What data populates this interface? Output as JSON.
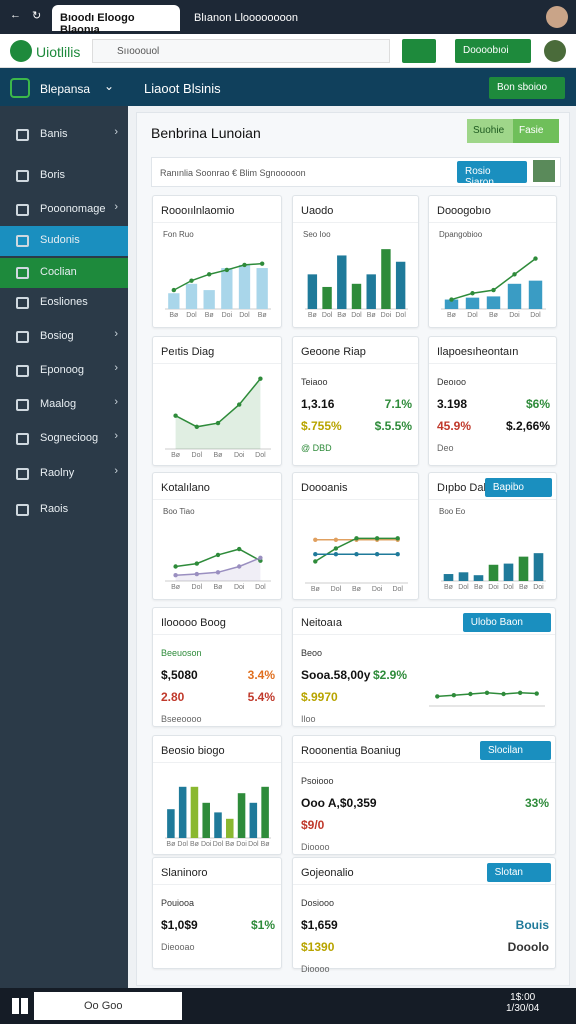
{
  "browser": {
    "tabs": [
      "Bıoodı Eloogo Blaonıa",
      "Blıanon Lloooooooon"
    ]
  },
  "app": {
    "logo": "Uiotlilis",
    "search": "Sııooouol",
    "header_button": "Doooobıoi"
  },
  "nav": {
    "title": "Blepansa",
    "page_title": "Liaoot Blsinis",
    "action": "Bon sboioo"
  },
  "sidebar": [
    {
      "label": "Banis",
      "chevron": true
    },
    {
      "label": "Boris",
      "chevron": false
    },
    {
      "label": "Pooonomage",
      "chevron": true
    },
    {
      "label": "Sudonis",
      "chevron": false,
      "highlight": "#1a8fbf"
    },
    {
      "label": "Coclian",
      "chevron": false,
      "highlight": "#1e8a3c"
    },
    {
      "label": "Eosliones",
      "chevron": false
    },
    {
      "label": "Bosiog",
      "chevron": true
    },
    {
      "label": "Eponoog",
      "chevron": true
    },
    {
      "label": "Maalog",
      "chevron": true
    },
    {
      "label": "Sognecioog",
      "chevron": true
    },
    {
      "label": "Raolny",
      "chevron": true
    },
    {
      "label": "Raois",
      "chevron": false
    }
  ],
  "content": {
    "title": "Benbrina Lunoian",
    "toggle": [
      "Suohie",
      "Fasie"
    ],
    "filter": "Ranınlia Soonrao  €  Blim  Sgnooooon",
    "filter_button": "Rosio Siaron"
  },
  "cards": [
    {
      "title": "Roooıılnlaomio",
      "legend": "Fon Ruo",
      "chart": {
        "type": "combo",
        "categories": [
          "Bø",
          "Dol",
          "Bø",
          "Doi",
          "Dol",
          "Bø"
        ],
        "ylim": [
          0,
          100
        ],
        "series": [
          {
            "kind": "bar",
            "color": "#a9d6ea",
            "values": [
              25,
              40,
              30,
              65,
              70,
              65
            ]
          },
          {
            "kind": "line",
            "color": "#2e8b3a",
            "values": [
              30,
              45,
              55,
              62,
              70,
              72
            ]
          }
        ]
      }
    },
    {
      "title": "Uaodo",
      "legend": "Seo Ioo",
      "chart": {
        "type": "bar",
        "categories": [
          "Bø",
          "Dol",
          "Bø",
          "Dol",
          "Bø",
          "Doi",
          "Dol"
        ],
        "ylim": [
          0,
          100
        ],
        "series": [
          {
            "kind": "bar",
            "colors": [
              "#1f7a9a",
              "#2e8b3a",
              "#1f7a9a",
              "#2e8b3a",
              "#1f7a9a",
              "#2e8b3a",
              "#1f7a9a"
            ],
            "values": [
              55,
              35,
              85,
              40,
              55,
              95,
              75
            ]
          }
        ]
      }
    },
    {
      "title": "Dooogobıo",
      "legend": "Dpangobioo",
      "chart": {
        "type": "combo",
        "categories": [
          "Bø",
          "Dol",
          "Bø",
          "Doi",
          "Dol"
        ],
        "ylim": [
          0,
          100
        ],
        "series": [
          {
            "kind": "bar",
            "color": "#3a9cc4",
            "values": [
              15,
              18,
              20,
              40,
              45
            ]
          },
          {
            "kind": "line",
            "color": "#2e8b3a",
            "values": [
              15,
              25,
              30,
              55,
              80
            ]
          }
        ]
      }
    },
    {
      "title": "Peıtis Diag",
      "chart": {
        "type": "area",
        "categories": [
          "Bø",
          "Dol",
          "Bø",
          "Doi",
          "Dol"
        ],
        "ylim": [
          0,
          100
        ],
        "series": [
          {
            "kind": "area",
            "color": "#2e8b3a",
            "values": [
              45,
              30,
              35,
              60,
              95
            ]
          }
        ]
      }
    },
    {
      "title": "Geoone Riap",
      "stats": [
        [
          {
            "text": "Teiaoo",
            "color": "#333"
          }
        ],
        [
          {
            "text": "1,3.16",
            "color": "#111"
          },
          {
            "text": "7.1%",
            "color": "#2e8b3a"
          }
        ],
        [
          {
            "text": "$.755%",
            "color": "#b8a400"
          },
          {
            "text": "$.5.5%",
            "color": "#2e8b3a"
          }
        ],
        [
          {
            "text": "@ DBD",
            "color": "#2e8b3a"
          }
        ]
      ]
    },
    {
      "title": "Ilapoesıheontaın",
      "stats": [
        [
          {
            "text": "Deoıoo",
            "color": "#333"
          }
        ],
        [
          {
            "text": "3.198",
            "color": "#111"
          },
          {
            "text": "$6%",
            "color": "#2e8b3a"
          }
        ],
        [
          {
            "text": "45.9%",
            "color": "#c0392b"
          },
          {
            "text": "$.2,66%",
            "color": "#111"
          }
        ],
        [
          {
            "text": "Deo",
            "color": "#666"
          }
        ]
      ]
    },
    {
      "title": "Kotalılano",
      "legend": "Boo Tiao",
      "chart": {
        "type": "line",
        "categories": [
          "Bø",
          "Dol",
          "Bø",
          "Doi",
          "Dol"
        ],
        "ylim": [
          0,
          100
        ],
        "series": [
          {
            "kind": "line",
            "color": "#2e8b3a",
            "values": [
              25,
              30,
              45,
              55,
              35
            ]
          },
          {
            "kind": "area",
            "color": "#9a8fc0",
            "values": [
              10,
              12,
              15,
              25,
              40
            ]
          }
        ]
      }
    },
    {
      "title": "Doooanis",
      "chart": {
        "type": "line",
        "categories": [
          "Bø",
          "Dol",
          "Bø",
          "Doi",
          "Dol"
        ],
        "ylim": [
          0,
          100
        ],
        "series": [
          {
            "kind": "line",
            "color": "#e0a060",
            "values": [
              60,
              60,
              60,
              60,
              60
            ]
          },
          {
            "kind": "line",
            "color": "#2e8b3a",
            "values": [
              30,
              48,
              62,
              62,
              62
            ]
          },
          {
            "kind": "line",
            "color": "#1f7a9a",
            "values": [
              40,
              40,
              40,
              40,
              40
            ]
          }
        ]
      }
    },
    {
      "title": "Dıpbo Dalo",
      "button": "Bapibo",
      "legend": "Boo Eo",
      "chart": {
        "type": "bar",
        "categories": [
          "Bø",
          "Dol",
          "Bø",
          "Doi",
          "Dol",
          "Bø",
          "Doi"
        ],
        "ylim": [
          0,
          100
        ],
        "series": [
          {
            "kind": "bar",
            "colors": [
              "#1f7a9a",
              "#1f7a9a",
              "#1f7a9a",
              "#2e8b3a",
              "#1f7a9a",
              "#2e8b3a",
              "#1f7a9a"
            ],
            "values": [
              12,
              15,
              10,
              28,
              30,
              42,
              48
            ]
          }
        ]
      }
    },
    {
      "title": "Ilooooo Boog",
      "stats": [
        [
          {
            "text": "Beeuoson",
            "color": "#2e8b3a"
          }
        ],
        [
          {
            "text": "$,5080",
            "color": "#111"
          },
          {
            "text": "3.4%",
            "color": "#e07020"
          }
        ],
        [
          {
            "text": "2.80",
            "color": "#c0392b"
          },
          {
            "text": "5.4%",
            "color": "#c0392b"
          }
        ],
        [
          {
            "text": "Bseeoooo",
            "color": "#666"
          }
        ]
      ]
    },
    {
      "title": "Neitoaıa",
      "button": "Ulobo Baon",
      "stats": [
        [
          {
            "text": "Beoo",
            "color": "#333"
          }
        ],
        [
          {
            "text": "Sooa.58,00y",
            "color": "#111"
          },
          {
            "text": "$2.9%",
            "color": "#2e8b3a"
          }
        ],
        [
          {
            "text": "$.9970",
            "color": "#b8a400"
          }
        ],
        [
          {
            "text": "Iloo",
            "color": "#666"
          }
        ]
      ],
      "chart": {
        "type": "line",
        "categories": [
          null,
          null,
          null,
          null,
          null,
          null,
          null
        ],
        "ylim": [
          0,
          100
        ],
        "series": [
          {
            "kind": "line",
            "color": "#2e8b3a",
            "values": [
              40,
              45,
              50,
              55,
              50,
              55,
              52
            ]
          }
        ]
      }
    },
    {
      "title": "Beosio biogo",
      "chart": {
        "type": "bar",
        "categories": [
          "Bø",
          "Dol",
          "Bø",
          "Doi",
          "Dol",
          "Bø",
          "Doi",
          "Dol",
          "Bø"
        ],
        "ylim": [
          0,
          100
        ],
        "series": [
          {
            "kind": "bar",
            "colors": [
              "#1f7a9a",
              "#1f7a9a",
              "#8ab830",
              "#2e8b3a",
              "#1f7a9a",
              "#8ab830",
              "#2e8b3a",
              "#1f7a9a",
              "#2e8b3a"
            ],
            "values": [
              45,
              80,
              80,
              55,
              40,
              30,
              70,
              55,
              80
            ]
          }
        ]
      }
    },
    {
      "title": "Rooonentia Boaniug",
      "button": "Slocilan",
      "stats": [
        [
          {
            "text": "Psoiooo",
            "color": "#333"
          }
        ],
        [
          {
            "text": "Ooo A,$0,359",
            "color": "#111"
          },
          {
            "text": "33%",
            "color": "#2e8b3a"
          }
        ],
        [
          {
            "text": "$9/0",
            "color": "#c0392b"
          }
        ],
        [
          {
            "text": "Dioooo",
            "color": "#666"
          }
        ]
      ]
    },
    {
      "title": "Slaninoro",
      "stats": [
        [
          {
            "text": "Pouiooa",
            "color": "#333"
          }
        ],
        [
          {
            "text": "$1,0$9",
            "color": "#111"
          },
          {
            "text": "$1%",
            "color": "#2e8b3a"
          }
        ],
        [
          {
            "text": "Dieooao",
            "color": "#666"
          }
        ]
      ]
    },
    {
      "title": "Gojeonalio",
      "button": "Slotan",
      "stats": [
        [
          {
            "text": "Dosiooo",
            "color": "#333"
          }
        ],
        [
          {
            "text": "$1,659",
            "color": "#111"
          },
          {
            "text": "Bouis",
            "color": "#1f7a9a"
          }
        ],
        [
          {
            "text": "$1390",
            "color": "#b8a400"
          },
          {
            "text": "Dooolo",
            "color": "#333"
          }
        ],
        [
          {
            "text": "Dioooo",
            "color": "#666"
          }
        ]
      ]
    }
  ],
  "taskbar": {
    "search": "Oo Goo",
    "time": "1$:00",
    "date": "1/30/04"
  }
}
